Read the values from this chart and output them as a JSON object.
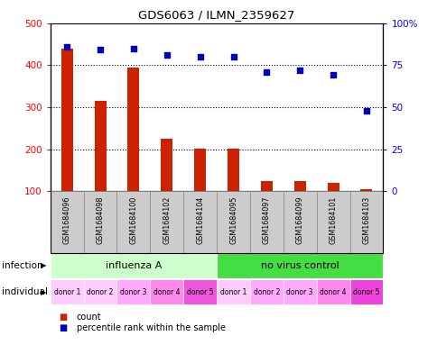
{
  "title": "GDS6063 / ILMN_2359627",
  "samples": [
    "GSM1684096",
    "GSM1684098",
    "GSM1684100",
    "GSM1684102",
    "GSM1684104",
    "GSM1684095",
    "GSM1684097",
    "GSM1684099",
    "GSM1684101",
    "GSM1684103"
  ],
  "counts": [
    440,
    315,
    395,
    225,
    202,
    202,
    125,
    125,
    120,
    105
  ],
  "percentiles": [
    86,
    84,
    85,
    81,
    80,
    80,
    71,
    72,
    69,
    48
  ],
  "ylim_left": [
    100,
    500
  ],
  "ylim_right": [
    0,
    100
  ],
  "yticks_left": [
    100,
    200,
    300,
    400,
    500
  ],
  "yticks_right": [
    0,
    25,
    50,
    75,
    100
  ],
  "bar_color": "#cc2200",
  "dot_color": "#0000bb",
  "infection_groups": [
    {
      "label": "influenza A",
      "start": 0,
      "end": 5,
      "color": "#ccffcc"
    },
    {
      "label": "no virus control",
      "start": 5,
      "end": 10,
      "color": "#44dd44"
    }
  ],
  "individual_labels": [
    "donor 1",
    "donor 2",
    "donor 3",
    "donor 4",
    "donor 5",
    "donor 1",
    "donor 2",
    "donor 3",
    "donor 4",
    "donor 5"
  ],
  "individual_colors": [
    "#ffccff",
    "#ffccff",
    "#ffaaff",
    "#ff88ee",
    "#ee55dd",
    "#ffccff",
    "#ffaaff",
    "#ffaaff",
    "#ff88ee",
    "#ee44dd"
  ],
  "sample_bg_color": "#cccccc",
  "bar_width": 0.35,
  "figsize": [
    4.85,
    3.93
  ],
  "dpi": 100
}
